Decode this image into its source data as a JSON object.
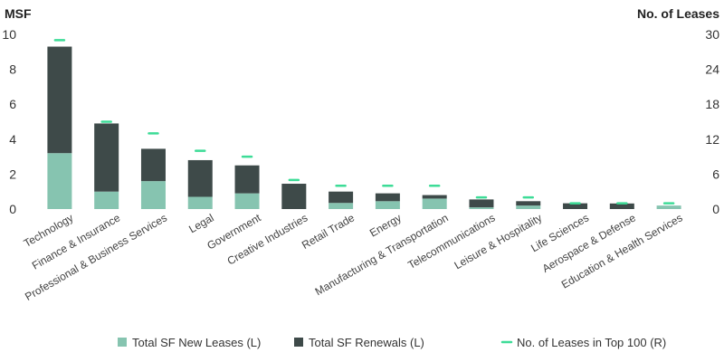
{
  "chart_data": {
    "type": "bar",
    "stacked": true,
    "categories": [
      "Technology",
      "Finance & Insurance",
      "Professional & Business Services",
      "Legal",
      "Government",
      "Creative Industries",
      "Retail Trade",
      "Energy",
      "Manufacturing & Transportation",
      "Telecommunications",
      "Leisure & Hospitality",
      "Life Sciences",
      "Aerospace & Defense",
      "Education & Health Services"
    ],
    "series": [
      {
        "name": "Total SF New Leases (L)",
        "type": "bar",
        "axis": "left",
        "color": "#86c4b0",
        "values": [
          3.2,
          1.0,
          1.6,
          0.7,
          0.9,
          0.0,
          0.35,
          0.45,
          0.6,
          0.1,
          0.2,
          0.0,
          0.0,
          0.2
        ]
      },
      {
        "name": "Total SF Renewals (L)",
        "type": "bar",
        "axis": "left",
        "color": "#3e4a49",
        "values": [
          6.1,
          3.9,
          1.85,
          2.1,
          1.6,
          1.45,
          0.65,
          0.45,
          0.2,
          0.45,
          0.25,
          0.33,
          0.32,
          0.0
        ]
      },
      {
        "name": "No. of Leases in Top 100 (R)",
        "type": "marker",
        "axis": "right",
        "color": "#3ddc97",
        "values": [
          29,
          15,
          13,
          10,
          9,
          5,
          4,
          4,
          4,
          2,
          2,
          1,
          1,
          1
        ]
      }
    ],
    "y_left": {
      "label": "MSF",
      "min": 0,
      "max": 10,
      "ticks": [
        0,
        2,
        4,
        6,
        8,
        10
      ]
    },
    "y_right": {
      "label": "No. of Leases",
      "min": 0,
      "max": 30,
      "ticks": [
        0,
        6,
        12,
        18,
        24,
        30
      ]
    },
    "grid": false,
    "legend_position": "bottom"
  }
}
